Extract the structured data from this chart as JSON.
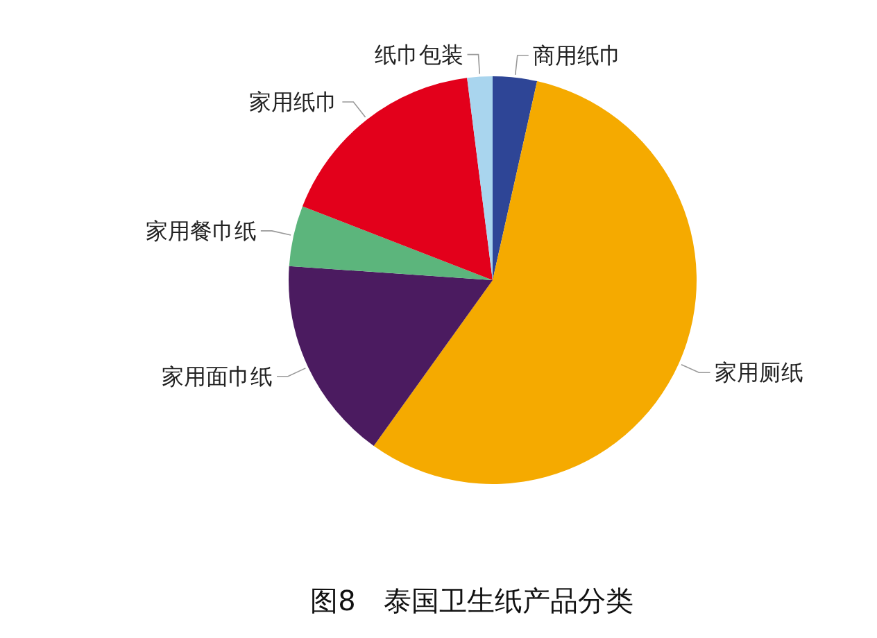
{
  "chart_data": {
    "type": "pie",
    "title": "图8　泰国卫生纸产品分类",
    "categories": [
      "商用纸巾",
      "家用厕纸",
      "家用面巾纸",
      "家用餐巾纸",
      "家用纸巾",
      "纸巾包装"
    ],
    "values": [
      3.5,
      56.4,
      16.2,
      4.8,
      17.1,
      2
    ],
    "colors": [
      "#2e4596",
      "#f5aa00",
      "#4b1b60",
      "#5cb57c",
      "#e3001b",
      "#a9d5ee"
    ],
    "legend": false
  }
}
